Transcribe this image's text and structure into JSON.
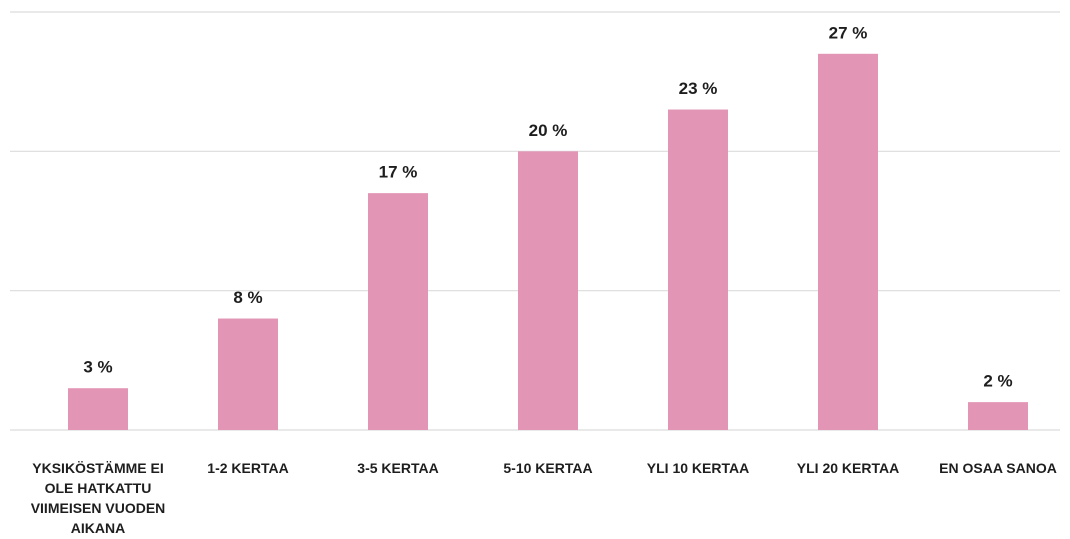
{
  "chart_data": {
    "type": "bar",
    "categories": [
      "YKSIKÖSTÄMME EI OLE HATKATTU VIIMEISEN VUODEN AIKANA",
      "1-2 KERTAA",
      "3-5 KERTAA",
      "5-10 KERTAA",
      "YLI 10 KERTAA",
      "YLI 20 KERTAA",
      "EN OSAA SANOA"
    ],
    "values": [
      3,
      8,
      17,
      20,
      23,
      27,
      2
    ],
    "value_labels": [
      "3 %",
      "8 %",
      "17 %",
      "20 %",
      "23 %",
      "27 %",
      "2 %"
    ],
    "color": "#e295b5",
    "ylim": [
      0,
      30
    ],
    "yticks": [
      0,
      10,
      20,
      30
    ],
    "grid": true
  }
}
